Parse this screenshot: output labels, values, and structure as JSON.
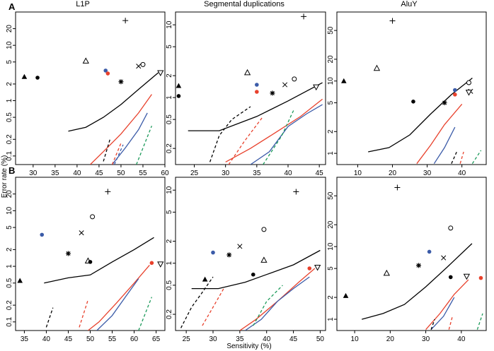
{
  "figure": {
    "row_labels": [
      "A",
      "B"
    ],
    "column_titles": [
      "L1P",
      "Segmental duplications",
      "AluY"
    ],
    "xlabel": "Sensitivity (%)",
    "ylabel": "Error rate (%)"
  },
  "colors": {
    "black": "#000000",
    "red": "#e8412c",
    "blue": "#3b5ba8",
    "green": "#1c9a5a",
    "dot_red": "#e8412c",
    "dot_blue": "#3b5ba8"
  },
  "chart_data": [
    {
      "type": "scatter",
      "panel": "A",
      "title": "L1P",
      "row": 0,
      "col": 0,
      "xlim": [
        26,
        60
      ],
      "xticks": [
        30,
        35,
        40,
        45,
        50,
        55,
        60
      ],
      "ylim": [
        0.07,
        40
      ],
      "yticks": [
        0.1,
        0.2,
        0.5,
        1,
        2,
        5,
        10,
        20
      ],
      "ylog": true,
      "points": [
        {
          "marker": "plus",
          "x": 51,
          "y": 28
        },
        {
          "marker": "tri-open",
          "x": 42,
          "y": 5.2
        },
        {
          "marker": "circle-open",
          "x": 55,
          "y": 4.5
        },
        {
          "marker": "x",
          "x": 54,
          "y": 4.2
        },
        {
          "marker": "tridown-open",
          "x": 59,
          "y": 3.2
        },
        {
          "marker": "dot-blue",
          "x": 46.5,
          "y": 3.5
        },
        {
          "marker": "dot-red",
          "x": 47,
          "y": 3.1
        },
        {
          "marker": "tri-filled",
          "x": 28,
          "y": 2.7
        },
        {
          "marker": "dot-black",
          "x": 31,
          "y": 2.6
        },
        {
          "marker": "star",
          "x": 50,
          "y": 2.2
        }
      ],
      "series": [
        {
          "color": "black",
          "dash": false,
          "x": [
            38,
            42,
            46,
            50,
            54,
            58.5
          ],
          "y": [
            0.28,
            0.33,
            0.5,
            0.85,
            1.6,
            3.2
          ]
        },
        {
          "color": "red",
          "dash": false,
          "x": [
            43,
            46,
            50,
            54,
            57
          ],
          "y": [
            0.07,
            0.12,
            0.25,
            0.6,
            1.3
          ]
        },
        {
          "color": "blue",
          "dash": false,
          "x": [
            48,
            51,
            54,
            56
          ],
          "y": [
            0.07,
            0.14,
            0.3,
            0.6
          ]
        },
        {
          "color": "black",
          "dash": true,
          "x": [
            46,
            47.5
          ],
          "y": [
            0.08,
            0.2
          ]
        },
        {
          "color": "red",
          "dash": true,
          "x": [
            48,
            50
          ],
          "y": [
            0.07,
            0.17
          ]
        },
        {
          "color": "blue",
          "dash": true,
          "x": [
            48.5,
            50.5
          ],
          "y": [
            0.07,
            0.16
          ]
        },
        {
          "color": "green",
          "dash": true,
          "x": [
            53.5,
            57
          ],
          "y": [
            0.07,
            0.35
          ]
        }
      ]
    },
    {
      "type": "scatter",
      "panel": "A",
      "title": "Segmental duplications",
      "row": 0,
      "col": 1,
      "xlim": [
        22,
        46
      ],
      "xticks": [
        25,
        30,
        35,
        40,
        45
      ],
      "ylim": [
        0.12,
        15
      ],
      "yticks": [
        0.2,
        0.5,
        1,
        2,
        5,
        10
      ],
      "ylog": true,
      "points": [
        {
          "marker": "plus",
          "x": 42.5,
          "y": 13
        },
        {
          "marker": "tri-open",
          "x": 33.5,
          "y": 2.2
        },
        {
          "marker": "circle-open",
          "x": 41,
          "y": 1.8
        },
        {
          "marker": "x",
          "x": 39.5,
          "y": 1.5
        },
        {
          "marker": "dot-blue",
          "x": 35,
          "y": 1.5
        },
        {
          "marker": "tri-filled",
          "x": 22.5,
          "y": 1.45
        },
        {
          "marker": "dot-red",
          "x": 35,
          "y": 1.2
        },
        {
          "marker": "star",
          "x": 37.5,
          "y": 1.15
        },
        {
          "marker": "dot-black",
          "x": 22.5,
          "y": 1.05
        },
        {
          "marker": "tridown-open",
          "x": 44.5,
          "y": 1.4
        }
      ],
      "series": [
        {
          "color": "black",
          "dash": false,
          "x": [
            24,
            29,
            35,
            40,
            45.5
          ],
          "y": [
            0.35,
            0.35,
            0.55,
            0.9,
            1.6
          ]
        },
        {
          "color": "red",
          "dash": false,
          "x": [
            30,
            34,
            38,
            42,
            45.5
          ],
          "y": [
            0.13,
            0.2,
            0.33,
            0.55,
            0.95
          ]
        },
        {
          "color": "blue",
          "dash": false,
          "x": [
            34,
            37,
            40,
            43,
            45.5
          ],
          "y": [
            0.12,
            0.18,
            0.4,
            0.6,
            0.8
          ]
        },
        {
          "color": "black",
          "dash": true,
          "x": [
            27.5,
            29,
            31,
            34
          ],
          "y": [
            0.13,
            0.3,
            0.5,
            0.75
          ]
        },
        {
          "color": "red",
          "dash": true,
          "x": [
            30.5,
            33,
            36
          ],
          "y": [
            0.12,
            0.25,
            0.55
          ]
        },
        {
          "color": "green",
          "dash": true,
          "x": [
            36,
            39,
            41
          ],
          "y": [
            0.12,
            0.3,
            0.7
          ]
        }
      ]
    },
    {
      "type": "scatter",
      "panel": "A",
      "title": "AluY",
      "row": 0,
      "col": 2,
      "xlim": [
        4,
        47
      ],
      "xticks": [
        10,
        20,
        30,
        40
      ],
      "ylim": [
        0.7,
        90
      ],
      "yticks": [
        1,
        2,
        5,
        10,
        20,
        50
      ],
      "ylog": true,
      "points": [
        {
          "marker": "plus",
          "x": 20,
          "y": 68
        },
        {
          "marker": "tri-open",
          "x": 15.5,
          "y": 15
        },
        {
          "marker": "tri-filled",
          "x": 6,
          "y": 10
        },
        {
          "marker": "circle-open",
          "x": 42,
          "y": 9.5
        },
        {
          "marker": "dot-blue",
          "x": 38,
          "y": 7.5
        },
        {
          "marker": "x",
          "x": 42.5,
          "y": 7.2
        },
        {
          "marker": "tridown-open",
          "x": 42,
          "y": 7
        },
        {
          "marker": "dot-red",
          "x": 38,
          "y": 6.5
        },
        {
          "marker": "dot-black",
          "x": 26,
          "y": 5.2
        },
        {
          "marker": "star",
          "x": 35,
          "y": 5
        }
      ],
      "series": [
        {
          "color": "black",
          "dash": false,
          "x": [
            13,
            19,
            25,
            31,
            37,
            43
          ],
          "y": [
            1.05,
            1.2,
            1.8,
            3.5,
            6.5,
            11
          ]
        },
        {
          "color": "red",
          "dash": false,
          "x": [
            27,
            31,
            35,
            40
          ],
          "y": [
            0.72,
            1.3,
            2.5,
            4.8
          ]
        },
        {
          "color": "blue",
          "dash": false,
          "x": [
            32,
            35,
            38
          ],
          "y": [
            0.72,
            1.2,
            2.3
          ]
        },
        {
          "color": "black",
          "dash": true,
          "x": [
            37,
            38.5
          ],
          "y": [
            0.72,
            1.05
          ]
        },
        {
          "color": "red",
          "dash": true,
          "x": [
            39.5,
            40.5
          ],
          "y": [
            0.72,
            1.05
          ]
        },
        {
          "color": "green",
          "dash": true,
          "x": [
            43,
            45.5
          ],
          "y": [
            0.72,
            1.1
          ]
        }
      ]
    },
    {
      "type": "scatter",
      "panel": "B",
      "title": "L1P",
      "row": 1,
      "col": 0,
      "xlim": [
        33,
        67
      ],
      "xticks": [
        35,
        40,
        45,
        50,
        55,
        60,
        65
      ],
      "ylim": [
        0.07,
        40
      ],
      "yticks": [
        0.1,
        0.2,
        0.5,
        1,
        2,
        5,
        10,
        20
      ],
      "ylog": true,
      "points": [
        {
          "marker": "plus",
          "x": 54,
          "y": 22
        },
        {
          "marker": "circle-open",
          "x": 50.5,
          "y": 7.8
        },
        {
          "marker": "x",
          "x": 48,
          "y": 4
        },
        {
          "marker": "dot-blue",
          "x": 39,
          "y": 3.7
        },
        {
          "marker": "star",
          "x": 45,
          "y": 1.7
        },
        {
          "marker": "tri-open",
          "x": 49.5,
          "y": 1.25
        },
        {
          "marker": "dot-black",
          "x": 50,
          "y": 1.2
        },
        {
          "marker": "dot-red",
          "x": 64,
          "y": 1.15
        },
        {
          "marker": "tridown-open",
          "x": 66,
          "y": 1.1
        },
        {
          "marker": "tri-filled",
          "x": 34,
          "y": 0.55
        }
      ],
      "series": [
        {
          "color": "black",
          "dash": false,
          "x": [
            39.5,
            45,
            50,
            55,
            60,
            64.5
          ],
          "y": [
            0.5,
            0.62,
            0.7,
            1.2,
            2,
            3.3
          ]
        },
        {
          "color": "red",
          "dash": false,
          "x": [
            49.5,
            52,
            56,
            60,
            63.5
          ],
          "y": [
            0.07,
            0.1,
            0.22,
            0.5,
            1.05
          ]
        },
        {
          "color": "blue",
          "dash": false,
          "x": [
            51.5,
            55,
            58,
            61
          ],
          "y": [
            0.07,
            0.13,
            0.28,
            0.6
          ]
        },
        {
          "color": "black",
          "dash": true,
          "x": [
            40,
            41.5
          ],
          "y": [
            0.08,
            0.18
          ]
        },
        {
          "color": "red",
          "dash": true,
          "x": [
            47.5,
            49.5
          ],
          "y": [
            0.08,
            0.25
          ]
        },
        {
          "color": "green",
          "dash": true,
          "x": [
            61,
            64
          ],
          "y": [
            0.07,
            0.28
          ]
        }
      ]
    },
    {
      "type": "scatter",
      "panel": "B",
      "title": "Segmental duplications",
      "row": 1,
      "col": 1,
      "xlim": [
        23,
        51
      ],
      "xticks": [
        25,
        30,
        35,
        40,
        45,
        50
      ],
      "ylim": [
        0.12,
        15
      ],
      "yticks": [
        0.2,
        0.5,
        1,
        2,
        5,
        10
      ],
      "ylog": true,
      "points": [
        {
          "marker": "plus",
          "x": 45.5,
          "y": 9.5
        },
        {
          "marker": "circle-open",
          "x": 39.5,
          "y": 2.9
        },
        {
          "marker": "x",
          "x": 35,
          "y": 1.7
        },
        {
          "marker": "dot-blue",
          "x": 30,
          "y": 1.4
        },
        {
          "marker": "star",
          "x": 33,
          "y": 1.3
        },
        {
          "marker": "tri-open",
          "x": 39.5,
          "y": 1.1
        },
        {
          "marker": "dot-red",
          "x": 48,
          "y": 0.85
        },
        {
          "marker": "tridown-open",
          "x": 49.5,
          "y": 0.88
        },
        {
          "marker": "dot-black",
          "x": 37.5,
          "y": 0.7
        },
        {
          "marker": "tri-filled",
          "x": 28.5,
          "y": 0.6
        }
      ],
      "series": [
        {
          "color": "black",
          "dash": false,
          "x": [
            26,
            31,
            36,
            40,
            45,
            50
          ],
          "y": [
            0.45,
            0.45,
            0.55,
            0.7,
            0.95,
            1.5
          ]
        },
        {
          "color": "red",
          "dash": false,
          "x": [
            35,
            38,
            42,
            46,
            49
          ],
          "y": [
            0.12,
            0.17,
            0.3,
            0.55,
            0.85
          ]
        },
        {
          "color": "blue",
          "dash": false,
          "x": [
            36,
            39,
            42,
            45,
            48
          ],
          "y": [
            0.12,
            0.17,
            0.3,
            0.45,
            0.65
          ]
        },
        {
          "color": "black",
          "dash": true,
          "x": [
            24,
            26,
            28,
            30
          ],
          "y": [
            0.13,
            0.25,
            0.4,
            0.65
          ]
        },
        {
          "color": "red",
          "dash": true,
          "x": [
            28,
            30,
            32
          ],
          "y": [
            0.14,
            0.25,
            0.45
          ]
        },
        {
          "color": "green",
          "dash": true,
          "x": [
            37.5,
            40,
            43
          ],
          "y": [
            0.14,
            0.3,
            0.5
          ]
        }
      ]
    },
    {
      "type": "scatter",
      "panel": "B",
      "title": "AluY",
      "row": 1,
      "col": 2,
      "xlim": [
        5,
        47
      ],
      "xticks": [
        10,
        20,
        30,
        40
      ],
      "ylim": [
        0.7,
        90
      ],
      "yticks": [
        1,
        2,
        5,
        10,
        20,
        50
      ],
      "ylog": true,
      "points": [
        {
          "marker": "plus",
          "x": 22,
          "y": 65
        },
        {
          "marker": "circle-open",
          "x": 37,
          "y": 18
        },
        {
          "marker": "dot-blue",
          "x": 31,
          "y": 8.5
        },
        {
          "marker": "x",
          "x": 35,
          "y": 7
        },
        {
          "marker": "star",
          "x": 28,
          "y": 5.5
        },
        {
          "marker": "tri-open",
          "x": 19,
          "y": 4.3
        },
        {
          "marker": "dot-black",
          "x": 37,
          "y": 3.8
        },
        {
          "marker": "tridown-open",
          "x": 41.5,
          "y": 3.9
        },
        {
          "marker": "dot-red",
          "x": 45.5,
          "y": 3.7
        },
        {
          "marker": "tri-filled",
          "x": 7.5,
          "y": 2.1
        }
      ],
      "series": [
        {
          "color": "black",
          "dash": false,
          "x": [
            12,
            18,
            24,
            30,
            36,
            43
          ],
          "y": [
            1,
            1.2,
            1.6,
            2.8,
            5.2,
            11
          ]
        },
        {
          "color": "red",
          "dash": false,
          "x": [
            30,
            34,
            38,
            42
          ],
          "y": [
            0.72,
            1.2,
            2.2,
            3.5
          ]
        },
        {
          "color": "blue",
          "dash": false,
          "x": [
            31.5,
            35,
            38
          ],
          "y": [
            0.72,
            1.1,
            2
          ]
        },
        {
          "color": "black",
          "dash": true,
          "x": [
            31.5,
            32.5
          ],
          "y": [
            0.72,
            1
          ]
        },
        {
          "color": "red",
          "dash": true,
          "x": [
            36.5,
            37.5
          ],
          "y": [
            0.72,
            1.1
          ]
        },
        {
          "color": "green",
          "dash": true,
          "x": [
            44.5,
            46
          ],
          "y": [
            0.72,
            1.2
          ]
        }
      ]
    }
  ]
}
